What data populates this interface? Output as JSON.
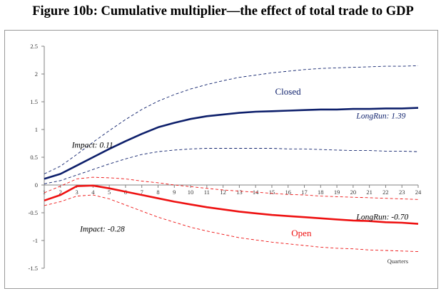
{
  "figure": {
    "title": "Figure 10b: Cumulative multiplier—the effect of total trade to GDP"
  },
  "colors": {
    "closed": "#0d1f6b",
    "open": "#ee1111",
    "axis": "#808080"
  },
  "chart_data": {
    "type": "line",
    "title": "Figure 10b: Cumulative multiplier—the effect of total trade to GDP",
    "xlabel": "Quarters",
    "ylabel": "",
    "ylim": [
      -1.5,
      2.5
    ],
    "xlim": [
      1,
      24
    ],
    "yticks": [
      "2.5",
      "2",
      "1.5",
      "1",
      "0.5",
      "0",
      "-0.5",
      "-1",
      "-1.5"
    ],
    "ytick_values": [
      2.5,
      2,
      1.5,
      1,
      0.5,
      0,
      -0.5,
      -1,
      -1.5
    ],
    "xticks": [
      "1",
      "2",
      "3",
      "4",
      "5",
      "6",
      "7",
      "8",
      "9",
      "10",
      "11",
      "12",
      "13",
      "14",
      "15",
      "16",
      "17",
      "18",
      "19",
      "20",
      "21",
      "22",
      "23",
      "24"
    ],
    "x": [
      1,
      2,
      3,
      4,
      5,
      6,
      7,
      8,
      9,
      10,
      11,
      12,
      13,
      14,
      15,
      16,
      17,
      18,
      19,
      20,
      21,
      22,
      23,
      24
    ],
    "grid": false,
    "legend": "none",
    "series": [
      {
        "name": "Closed",
        "style": "solid",
        "group": "closed",
        "values": [
          0.11,
          0.2,
          0.35,
          0.5,
          0.65,
          0.79,
          0.92,
          1.04,
          1.12,
          1.19,
          1.24,
          1.27,
          1.3,
          1.32,
          1.33,
          1.34,
          1.35,
          1.36,
          1.36,
          1.37,
          1.37,
          1.38,
          1.38,
          1.39
        ]
      },
      {
        "name": "",
        "style": "dashed",
        "group": "closed",
        "values": [
          0.2,
          0.34,
          0.55,
          0.77,
          0.98,
          1.18,
          1.36,
          1.51,
          1.63,
          1.73,
          1.81,
          1.88,
          1.94,
          1.98,
          2.02,
          2.05,
          2.08,
          2.1,
          2.11,
          2.12,
          2.13,
          2.14,
          2.14,
          2.15
        ]
      },
      {
        "name": "",
        "style": "dashed",
        "group": "closed",
        "values": [
          0.02,
          0.08,
          0.18,
          0.28,
          0.38,
          0.47,
          0.55,
          0.6,
          0.63,
          0.65,
          0.66,
          0.66,
          0.66,
          0.66,
          0.66,
          0.65,
          0.65,
          0.64,
          0.63,
          0.62,
          0.62,
          0.61,
          0.61,
          0.6
        ]
      },
      {
        "name": "Open",
        "style": "solid",
        "group": "open",
        "values": [
          -0.28,
          -0.18,
          -0.02,
          -0.01,
          -0.06,
          -0.12,
          -0.18,
          -0.24,
          -0.3,
          -0.35,
          -0.4,
          -0.44,
          -0.48,
          -0.51,
          -0.54,
          -0.56,
          -0.58,
          -0.6,
          -0.62,
          -0.64,
          -0.65,
          -0.67,
          -0.68,
          -0.7
        ]
      },
      {
        "name": "",
        "style": "dashed",
        "group": "open",
        "values": [
          -0.14,
          -0.02,
          0.11,
          0.14,
          0.13,
          0.11,
          0.07,
          0.04,
          0.0,
          -0.03,
          -0.06,
          -0.09,
          -0.11,
          -0.13,
          -0.15,
          -0.17,
          -0.18,
          -0.2,
          -0.21,
          -0.22,
          -0.23,
          -0.24,
          -0.25,
          -0.26
        ]
      },
      {
        "name": "",
        "style": "dashed",
        "group": "open",
        "values": [
          -0.37,
          -0.3,
          -0.2,
          -0.18,
          -0.25,
          -0.36,
          -0.47,
          -0.58,
          -0.67,
          -0.76,
          -0.83,
          -0.89,
          -0.95,
          -0.99,
          -1.03,
          -1.06,
          -1.09,
          -1.12,
          -1.14,
          -1.15,
          -1.17,
          -1.18,
          -1.19,
          -1.2
        ]
      }
    ],
    "annotations": [
      {
        "text": "Closed",
        "x": 15.2,
        "y": 1.63,
        "group": "closed",
        "style": "normal"
      },
      {
        "text": "LongRun: 1.39",
        "x": 20.2,
        "y": 1.2,
        "group": "closed",
        "style": "italic"
      },
      {
        "text": "Impact: 0.11",
        "x": 2.7,
        "y": 0.67,
        "group": "none",
        "style": "italic"
      },
      {
        "text": "Open",
        "x": 16.2,
        "y": -0.92,
        "group": "open",
        "style": "normal"
      },
      {
        "text": "LongRun: -0.70",
        "x": 20.2,
        "y": -0.62,
        "group": "none",
        "style": "italic"
      },
      {
        "text": "Impact: -0.28",
        "x": 3.2,
        "y": -0.84,
        "group": "none",
        "style": "italic"
      }
    ]
  }
}
